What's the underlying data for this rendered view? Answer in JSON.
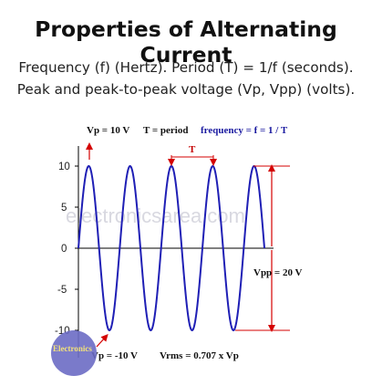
{
  "title": "Properties of Alternating Current",
  "subtitle_line1": "Frequency (f) (Hertz). Period (T) = 1/f (seconds).",
  "subtitle_line2": "Peak and peak-to-peak voltage (Vp, Vpp) (volts).",
  "annotations": {
    "vp_pos": "Vp = 10 V",
    "period_def": "T = period",
    "frequency_def": "frequency  =  f = 1 / T",
    "period_marker": "T",
    "vpp": "Vpp = 20 V",
    "vp_neg": "Vp = -10 V",
    "vrms": "Vrms = 0.707 x Vp"
  },
  "y_ticks": [
    "10",
    "5",
    "0",
    "-5",
    "-10"
  ],
  "watermark": "electronicsarea.com",
  "logo_text": "Electronics",
  "colors": {
    "wave": "#1f1fb5",
    "arrow": "#d40000",
    "axis": "#000000",
    "logo": "#6c6cc4"
  },
  "chart_data": {
    "type": "line",
    "function": "sine",
    "amplitude": 10,
    "cycles_shown": 4.5,
    "ylim": [
      -10,
      10
    ]
  }
}
